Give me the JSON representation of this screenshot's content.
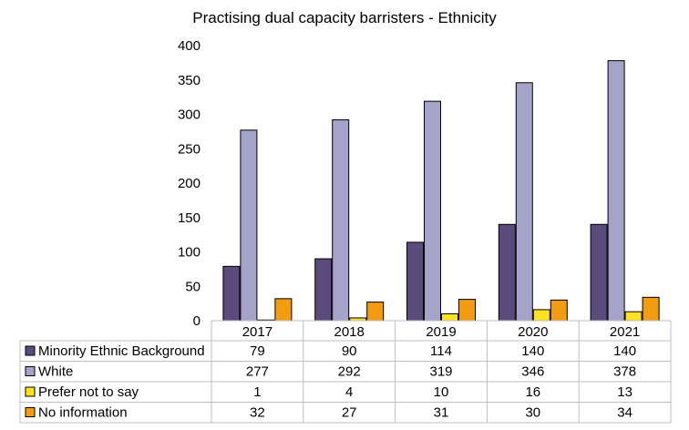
{
  "chart_data": {
    "type": "bar",
    "title": "Practising dual capacity barristers - Ethnicity",
    "categories": [
      "2017",
      "2018",
      "2019",
      "2020",
      "2021"
    ],
    "ylim": [
      0,
      400
    ],
    "yticks": [
      "0",
      "50",
      "100",
      "150",
      "200",
      "250",
      "300",
      "350",
      "400"
    ],
    "grid": false,
    "legend": "data-table-below",
    "series": [
      {
        "name": "Minority Ethnic Background",
        "color": "#5B4A7C",
        "values": [
          79,
          90,
          114,
          140,
          140
        ]
      },
      {
        "name": "White",
        "color": "#A5A3C9",
        "values": [
          277,
          292,
          319,
          346,
          378
        ]
      },
      {
        "name": "Prefer not to say",
        "color": "#FFE21F",
        "values": [
          1,
          4,
          10,
          16,
          13
        ]
      },
      {
        "name": "No information",
        "color": "#F39C12",
        "values": [
          32,
          27,
          31,
          30,
          34
        ]
      }
    ]
  }
}
